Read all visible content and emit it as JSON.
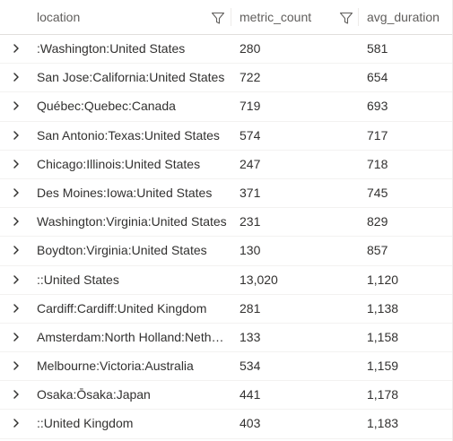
{
  "columns": {
    "location": "location",
    "metric_count": "metric_count",
    "avg_duration": "avg_duration"
  },
  "icons": {
    "filter": "filter-funnel-icon",
    "expand": "chevron-right-icon"
  },
  "rows": [
    {
      "location": ":Washington:United States",
      "metric_count": "280",
      "avg_duration": "581"
    },
    {
      "location": "San Jose:California:United States",
      "metric_count": "722",
      "avg_duration": "654"
    },
    {
      "location": "Québec:Quebec:Canada",
      "metric_count": "719",
      "avg_duration": "693"
    },
    {
      "location": "San Antonio:Texas:United States",
      "metric_count": "574",
      "avg_duration": "717"
    },
    {
      "location": "Chicago:Illinois:United States",
      "metric_count": "247",
      "avg_duration": "718"
    },
    {
      "location": "Des Moines:Iowa:United States",
      "metric_count": "371",
      "avg_duration": "745"
    },
    {
      "location": "Washington:Virginia:United States",
      "metric_count": "231",
      "avg_duration": "829"
    },
    {
      "location": "Boydton:Virginia:United States",
      "metric_count": "130",
      "avg_duration": "857"
    },
    {
      "location": "::United States",
      "metric_count": "13,020",
      "avg_duration": "1,120"
    },
    {
      "location": "Cardiff:Cardiff:United Kingdom",
      "metric_count": "281",
      "avg_duration": "1,138"
    },
    {
      "location": "Amsterdam:North Holland:Netherlands",
      "metric_count": "133",
      "avg_duration": "1,158"
    },
    {
      "location": "Melbourne:Victoria:Australia",
      "metric_count": "534",
      "avg_duration": "1,159"
    },
    {
      "location": "Osaka:Ōsaka:Japan",
      "metric_count": "441",
      "avg_duration": "1,178"
    },
    {
      "location": "::United Kingdom",
      "metric_count": "403",
      "avg_duration": "1,183"
    }
  ]
}
